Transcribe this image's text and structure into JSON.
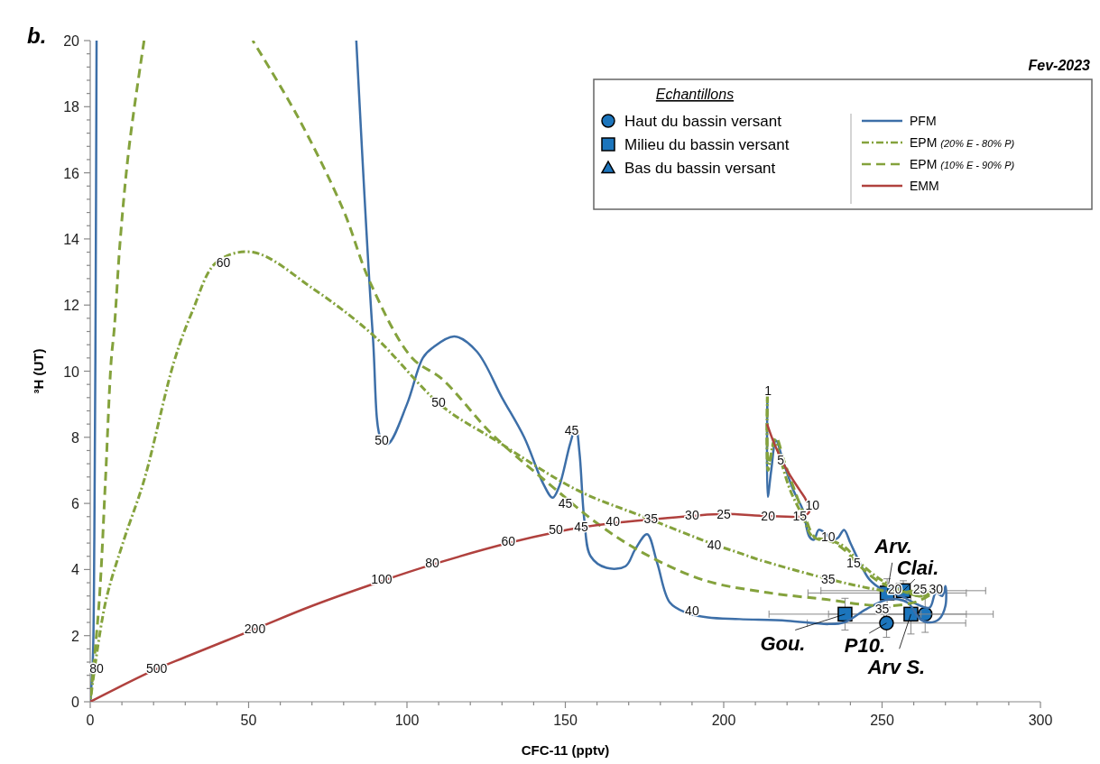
{
  "chart_data": {
    "type": "line",
    "title": "b.",
    "subtitle": "Fev-2023",
    "xlabel": "CFC-11 (pptv)",
    "ylabel": "³H (UT)",
    "legend_title": "Echantillons",
    "legend": "top right",
    "grid": false,
    "xlim": [
      0,
      300
    ],
    "ylim": [
      0,
      20
    ],
    "xticks": [
      0,
      {
        "value": 10,
        "label": null
      },
      {
        "value": 20,
        "label": null
      },
      {
        "value": 30,
        "label": null
      },
      {
        "value": 40,
        "label": null
      },
      50,
      {
        "value": 60,
        "label": null
      },
      {
        "value": 70,
        "label": null
      },
      {
        "value": 80,
        "label": null
      },
      {
        "value": 90,
        "label": null
      },
      100,
      {
        "value": 110,
        "label": null
      },
      {
        "value": 120,
        "label": null
      },
      {
        "value": 130,
        "label": null
      },
      {
        "value": 140,
        "label": null
      },
      150,
      {
        "value": 160,
        "label": null
      },
      {
        "value": 170,
        "label": null
      },
      {
        "value": 180,
        "label": null
      },
      {
        "value": 190,
        "label": null
      },
      200,
      {
        "value": 210,
        "label": null
      },
      {
        "value": 220,
        "label": null
      },
      {
        "value": 230,
        "label": null
      },
      {
        "value": 240,
        "label": null
      },
      250,
      {
        "value": 260,
        "label": null
      },
      {
        "value": 270,
        "label": null
      },
      {
        "value": 280,
        "label": null
      },
      {
        "value": 290,
        "label": null
      },
      300
    ],
    "yticks": [
      0,
      {
        "value": 0.4,
        "label": null
      },
      {
        "value": 0.8,
        "label": null
      },
      {
        "value": 1.2,
        "label": null
      },
      {
        "value": 1.6,
        "label": null
      },
      2,
      {
        "value": 2.4,
        "label": null
      },
      {
        "value": 2.8,
        "label": null
      },
      {
        "value": 3.2,
        "label": null
      },
      {
        "value": 3.6,
        "label": null
      },
      4,
      {
        "value": 4.4,
        "label": null
      },
      {
        "value": 4.8,
        "label": null
      },
      {
        "value": 5.2,
        "label": null
      },
      {
        "value": 5.6,
        "label": null
      },
      6,
      {
        "value": 6.4,
        "label": null
      },
      {
        "value": 6.8,
        "label": null
      },
      {
        "value": 7.2,
        "label": null
      },
      {
        "value": 7.6,
        "label": null
      },
      8,
      {
        "value": 8.4,
        "label": null
      },
      {
        "value": 8.8,
        "label": null
      },
      {
        "value": 9.2,
        "label": null
      },
      {
        "value": 9.6,
        "label": null
      },
      10,
      {
        "value": 10.4,
        "label": null
      },
      {
        "value": 10.8,
        "label": null
      },
      {
        "value": 11.2,
        "label": null
      },
      {
        "value": 11.6,
        "label": null
      },
      12,
      {
        "value": 12.4,
        "label": null
      },
      {
        "value": 12.8,
        "label": null
      },
      {
        "value": 13.2,
        "label": null
      },
      {
        "value": 13.6,
        "label": null
      },
      14,
      {
        "value": 14.4,
        "label": null
      },
      {
        "value": 14.8,
        "label": null
      },
      {
        "value": 15.2,
        "label": null
      },
      {
        "value": 15.6,
        "label": null
      },
      16,
      {
        "value": 16.4,
        "label": null
      },
      {
        "value": 16.8,
        "label": null
      },
      {
        "value": 17.2,
        "label": null
      },
      {
        "value": 17.6,
        "label": null
      },
      18,
      {
        "value": 18.4,
        "label": null
      },
      {
        "value": 18.8,
        "label": null
      },
      {
        "value": 19.2,
        "label": null
      },
      {
        "value": 19.6,
        "label": null
      },
      20
    ],
    "series": [
      {
        "name": "Haut du bassin versant",
        "type": "scatter",
        "marker": "circle",
        "color": "#1c75bc",
        "x": [
          251.4,
          263.6
        ],
        "values": [
          2.38,
          2.65
        ],
        "errors": [
          0.43,
          0.55
        ],
        "xerrors": [
          25,
          13
        ]
      },
      {
        "name": "Milieu du bassin versant",
        "type": "scatter",
        "marker": "square",
        "color": "#1c75bc",
        "x": [
          238.3,
          251.6,
          256.7,
          259.1
        ],
        "values": [
          2.65,
          3.29,
          3.36,
          2.65
        ],
        "errors": [
          0.48,
          0.43,
          0.3,
          0.6
        ],
        "xerrors": [
          24,
          25,
          26,
          26
        ]
      },
      {
        "name": "Bas du bassin versant",
        "type": "scatter",
        "marker": "triangle",
        "color": "#1c75bc"
      },
      {
        "name": "PFM",
        "line_style": "solid",
        "color": "#3d6fa8",
        "x": [
          213.8,
          213.9,
          215,
          216.5,
          219,
          222,
          225,
          227,
          228.5,
          230,
          232,
          234,
          236,
          238,
          240,
          243,
          246,
          250,
          256,
          261,
          265,
          267,
          269,
          270,
          270,
          268,
          265,
          262,
          258,
          252,
          245,
          238,
          233,
          220,
          205,
          195,
          188,
          183,
          179,
          175.8,
          172,
          169,
          163,
          158,
          156,
          154.5,
          153.3,
          151.5,
          148,
          146,
          143,
          137,
          130,
          122,
          115,
          108,
          105,
          100,
          94,
          92,
          89.2,
          84,
          null,
          2,
          1.7,
          1.3,
          0.8,
          0
        ],
        "values": [
          9.3,
          6.2,
          7.0,
          7.9,
          7.2,
          6.4,
          5.8,
          5.0,
          4.9,
          5.2,
          5.1,
          4.9,
          4.95,
          5.2,
          4.8,
          4.2,
          3.7,
          3.4,
          3.2,
          2.95,
          2.85,
          3.3,
          3.2,
          3.5,
          2.9,
          2.5,
          2.4,
          2.5,
          3.0,
          3.1,
          2.8,
          2.4,
          2.35,
          2.45,
          2.5,
          2.55,
          2.7,
          3.0,
          4.2,
          5.07,
          4.6,
          4.1,
          4.05,
          4.4,
          5.5,
          7.5,
          8.3,
          7.8,
          6.5,
          6.17,
          6.6,
          8.0,
          9.2,
          10.6,
          11.05,
          10.7,
          10.4,
          9.0,
          7.8,
          7.9,
          11.1,
          20,
          null,
          20,
          12,
          5,
          1.2,
          0
        ]
      },
      {
        "name": "EPM (20% E - 80% P)",
        "line_style": "dashdot",
        "color": "#84a23c",
        "x": [
          213.8,
          214,
          216,
          218,
          221,
          225,
          228,
          233,
          238,
          243,
          248,
          253,
          258,
          263,
          266,
          256.4,
          248,
          233.6,
          211,
          205,
          196.6,
          174.6,
          153.8,
          127.3,
          111,
          89.2,
          70.3,
          51.3,
          39.9,
          32.2,
          26.5,
          17,
          10.5,
          4.8,
          0
        ],
        "values": [
          9.3,
          7.0,
          7.9,
          7.3,
          6.4,
          5.6,
          5.0,
          4.9,
          4.7,
          4.2,
          3.8,
          3.5,
          3.3,
          3.2,
          3.5,
          3.3,
          3.4,
          3.7,
          4.3,
          4.5,
          4.77,
          5.6,
          6.4,
          7.95,
          8.95,
          11.1,
          12.5,
          13.6,
          13.3,
          11.8,
          10.3,
          6.7,
          4.86,
          3.0,
          0
        ]
      },
      {
        "name": "EPM (10% E - 90% P)",
        "line_style": "dashed",
        "color": "#84a23c",
        "x": [
          213.8,
          214.2,
          216.5,
          219,
          222,
          226,
          229,
          234,
          238,
          243,
          248,
          253,
          258,
          262,
          266,
          261,
          252.7,
          243,
          233.6,
          214,
          193.7,
          174.6,
          160,
          146,
          127.3,
          111,
          101.6,
          88.3,
          79.8,
          65.5,
          51.3,
          null,
          17,
          12.3,
          9.5,
          7.6,
          6.6,
          4.8,
          2.8,
          0
        ],
        "values": [
          9.3,
          7.2,
          8.0,
          7.3,
          6.5,
          5.5,
          4.95,
          4.85,
          4.6,
          4.1,
          3.7,
          3.45,
          3.3,
          3.2,
          3.3,
          3.03,
          2.9,
          2.95,
          3.08,
          3.3,
          3.68,
          4.5,
          5.4,
          6.5,
          8.05,
          9.77,
          10.4,
          12.7,
          14.9,
          17.7,
          20,
          null,
          20,
          16.8,
          14.0,
          11.3,
          10.3,
          6.7,
          3.0,
          0
        ]
      },
      {
        "name": "EMM",
        "line_style": "solid",
        "color": "#b0413e",
        "x": [
          213.7,
          216,
          220,
          224,
          226,
          227,
          225,
          214,
          200,
          190,
          178,
          165,
          155,
          148,
          132,
          108,
          92,
          70,
          52,
          30,
          20,
          0
        ],
        "values": [
          8.4,
          7.8,
          7.0,
          6.4,
          6.1,
          5.75,
          5.62,
          5.62,
          5.68,
          5.62,
          5.52,
          5.4,
          5.27,
          5.15,
          4.8,
          4.15,
          3.65,
          2.9,
          2.2,
          1.35,
          0.95,
          0
        ]
      }
    ],
    "annotations": [
      {
        "text": "Arv.",
        "x": 251.6,
        "y": 3.29
      },
      {
        "text": "Clai.",
        "x": 256.7,
        "y": 3.36
      },
      {
        "text": "Gou.",
        "x": 238.3,
        "y": 2.65
      },
      {
        "text": "P10.",
        "x": 251.4,
        "y": 2.38
      },
      {
        "text": "Arv S.",
        "x": 259.1,
        "y": 2.65
      },
      {
        "text": "80",
        "x": 2,
        "y": 1.0
      },
      {
        "text": "500",
        "x": 21,
        "y": 1.0
      },
      {
        "text": "200",
        "x": 52,
        "y": 2.2
      },
      {
        "text": "100",
        "x": 92,
        "y": 3.7
      },
      {
        "text": "80",
        "x": 108,
        "y": 4.2
      },
      {
        "text": "60",
        "x": 132,
        "y": 4.85
      },
      {
        "text": "50",
        "x": 147,
        "y": 5.2
      },
      {
        "text": "45",
        "x": 155,
        "y": 5.3
      },
      {
        "text": "40",
        "x": 165,
        "y": 5.45
      },
      {
        "text": "35",
        "x": 177,
        "y": 5.55
      },
      {
        "text": "30",
        "x": 190,
        "y": 5.65
      },
      {
        "text": "25",
        "x": 200,
        "y": 5.68
      },
      {
        "text": "20",
        "x": 214,
        "y": 5.62
      },
      {
        "text": "15",
        "x": 224,
        "y": 5.62
      },
      {
        "text": "10",
        "x": 228,
        "y": 5.95
      },
      {
        "text": "60",
        "x": 42,
        "y": 13.3
      },
      {
        "text": "50",
        "x": 110,
        "y": 9.05
      },
      {
        "text": "50",
        "x": 92,
        "y": 7.9
      },
      {
        "text": "45",
        "x": 152,
        "y": 8.2
      },
      {
        "text": "45",
        "x": 150,
        "y": 6.0
      },
      {
        "text": "40",
        "x": 197,
        "y": 4.75
      },
      {
        "text": "40",
        "x": 190,
        "y": 2.75
      },
      {
        "text": "35",
        "x": 233,
        "y": 3.7
      },
      {
        "text": "35",
        "x": 250,
        "y": 2.8
      },
      {
        "text": "20",
        "x": 254,
        "y": 3.4
      },
      {
        "text": "25",
        "x": 262,
        "y": 3.4
      },
      {
        "text": "30",
        "x": 267,
        "y": 3.4
      },
      {
        "text": "1",
        "x": 214,
        "y": 9.4
      },
      {
        "text": "5",
        "x": 218,
        "y": 7.3
      },
      {
        "text": "10",
        "x": 233,
        "y": 5.0
      },
      {
        "text": "15",
        "x": 241,
        "y": 4.2
      }
    ]
  }
}
